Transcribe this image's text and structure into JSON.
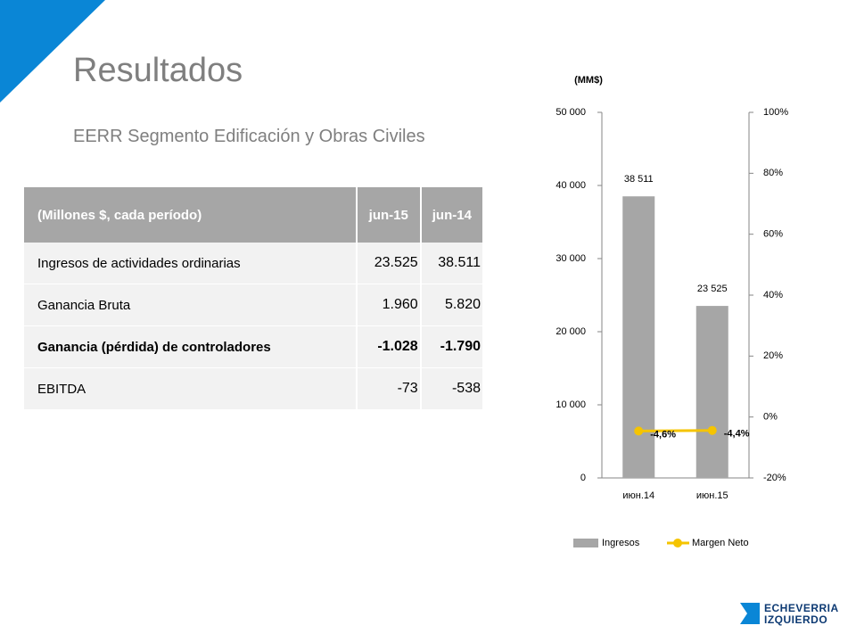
{
  "title": "Resultados",
  "subtitle": "EERR Segmento Edificación y Obras Civiles",
  "table": {
    "header": [
      "(Millones $, cada período)",
      "jun-15",
      "jun-14"
    ],
    "rows": [
      [
        "Ingresos de actividades ordinarias",
        "23.525",
        "38.511"
      ],
      [
        "Ganancia Bruta",
        "1.960",
        "5.820"
      ],
      [
        "Ganancia (pérdida) de controladores",
        "-1.028",
        "-1.790"
      ],
      [
        "EBITDA",
        "-73",
        "-538"
      ]
    ]
  },
  "logo": [
    "ECHEVERRIA",
    "IZQUIERDO"
  ],
  "chart_data": {
    "type": "combo",
    "unit_label": "(MM$)",
    "categories": [
      "июн.14",
      "июн.15"
    ],
    "series": [
      {
        "name": "Ingresos",
        "color": "#a6a6a6",
        "values": [
          38511,
          23525
        ],
        "value_labels": [
          "38 511",
          "23 525"
        ]
      },
      {
        "name": "Margen Neto",
        "color": "#f5c400",
        "axis": "y2",
        "values": [
          -4.6,
          -4.4
        ],
        "value_labels": [
          "-4,6%",
          "-4,4%"
        ]
      }
    ],
    "ylim": [
      0,
      50000
    ],
    "yticks": [
      0,
      {
        "value": 10000,
        "label": "10 000"
      },
      {
        "value": 20000,
        "label": "20 000"
      },
      {
        "value": 30000,
        "label": "30 000"
      },
      {
        "value": 40000,
        "label": "40 000"
      },
      {
        "value": 50000,
        "label": "50 000"
      }
    ],
    "y2lim": [
      -20,
      100
    ],
    "y2ticks": [
      {
        "value": -20,
        "label": "-20%"
      },
      {
        "value": 0,
        "label": "0%"
      },
      {
        "value": 20,
        "label": "20%"
      },
      {
        "value": 40,
        "label": "40%"
      },
      {
        "value": 60,
        "label": "60%"
      },
      {
        "value": 80,
        "label": "80%"
      },
      {
        "value": 100,
        "label": "100%"
      }
    ],
    "legend": "bottom"
  }
}
